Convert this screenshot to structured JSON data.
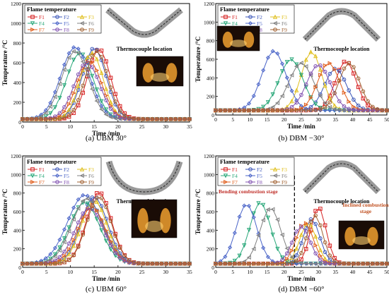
{
  "figure": {
    "panels": [
      {
        "caption": "(a) UBM 30°",
        "legend_title": "Flame temperature",
        "location_label": "Thermocouple location",
        "stage_labels": []
      },
      {
        "caption": "(b) DBM −30°",
        "legend_title": "Flame temperature",
        "location_label": "Thermocouple location",
        "stage_labels": []
      },
      {
        "caption": "(c) UBM 60°",
        "legend_title": "Flame temperature",
        "location_label": "Thermocouple location",
        "stage_labels": []
      },
      {
        "caption": "(d) DBM −60°",
        "legend_title": "Flame temperature",
        "location_label": "Thermocouple location",
        "stage_labels": [
          "Bending combustion stage",
          "Inclined combustion stage"
        ]
      }
    ]
  },
  "colors": {
    "F1": "#d62020",
    "F2": "#3a55b8",
    "F3": "#e0c020",
    "F4": "#2aa87a",
    "F5": "#4a64c8",
    "F6": "#808080",
    "F7": "#e06020",
    "F8": "#8050b0",
    "F9": "#a06030"
  },
  "icons": [
    "thermocouple-location-diagram",
    "flame-photo"
  ],
  "chart_data": [
    {
      "type": "line",
      "xlabel": "Time /min",
      "ylabel": "Temperature /°C",
      "xlim": [
        0,
        35
      ],
      "ylim": [
        0,
        1200
      ],
      "xticks": [
        0,
        5,
        10,
        15,
        20,
        25,
        30,
        35
      ],
      "yticks": [
        0,
        200,
        400,
        600,
        800,
        1000,
        1200
      ],
      "legend": "top-left",
      "series": [
        {
          "name": "F1",
          "peak_time": 16,
          "peak": 740,
          "width": 2.4,
          "base": 30
        },
        {
          "name": "F2",
          "peak_time": 15,
          "peak": 750,
          "width": 2.5,
          "base": 30
        },
        {
          "name": "F3",
          "peak_time": 14.5,
          "peak": 700,
          "width": 2.4,
          "base": 30
        },
        {
          "name": "F4",
          "peak_time": 12,
          "peak": 700,
          "width": 2.8,
          "base": 30
        },
        {
          "name": "F5",
          "peak_time": 11,
          "peak": 760,
          "width": 3.0,
          "base": 30
        },
        {
          "name": "F6",
          "peak_time": 11,
          "peak": 720,
          "width": 2.8,
          "base": 30
        },
        {
          "name": "F7",
          "peak_time": 14,
          "peak": 620,
          "width": 2.6,
          "base": 30
        },
        {
          "name": "F8",
          "peak_time": 13.5,
          "peak": 600,
          "width": 2.7,
          "base": 30
        },
        {
          "name": "F9",
          "peak_time": 15.5,
          "peak": 720,
          "width": 2.4,
          "base": 30
        }
      ]
    },
    {
      "type": "line",
      "xlabel": "Time /min",
      "ylabel": "Temperature /°C",
      "xlim": [
        0,
        50
      ],
      "ylim": [
        0,
        1200
      ],
      "xticks": [
        0,
        5,
        10,
        15,
        20,
        25,
        30,
        35,
        40,
        45,
        50
      ],
      "yticks": [
        0,
        200,
        400,
        600,
        800,
        1000,
        1200
      ],
      "legend": "top-left",
      "series": [
        {
          "name": "F1",
          "peak_time": 38,
          "peak": 580,
          "width": 3.0,
          "base": 50
        },
        {
          "name": "F2",
          "peak_time": 35,
          "peak": 500,
          "width": 3.2,
          "base": 50
        },
        {
          "name": "F3",
          "peak_time": 28,
          "peak": 680,
          "width": 3.0,
          "base": 50
        },
        {
          "name": "F4",
          "peak_time": 22,
          "peak": 600,
          "width": 3.5,
          "base": 50
        },
        {
          "name": "F5",
          "peak_time": 17,
          "peak": 690,
          "width": 3.5,
          "base": 50
        },
        {
          "name": "F6",
          "peak_time": 25,
          "peak": 560,
          "width": 3.6,
          "base": 50
        },
        {
          "name": "F7",
          "peak_time": 33,
          "peak": 560,
          "width": 3.2,
          "base": 50
        },
        {
          "name": "F8",
          "peak_time": 30,
          "peak": 540,
          "width": 3.4,
          "base": 50
        },
        {
          "name": "F9",
          "peak_time": 39,
          "peak": 560,
          "width": 3.0,
          "base": 50
        }
      ]
    },
    {
      "type": "line",
      "xlabel": "Time /min",
      "ylabel": "Temperature /°C",
      "xlim": [
        0,
        35
      ],
      "ylim": [
        0,
        1200
      ],
      "xticks": [
        0,
        5,
        10,
        15,
        20,
        25,
        30,
        35
      ],
      "yticks": [
        0,
        200,
        400,
        600,
        800,
        1000,
        1200
      ],
      "legend": "top-left",
      "series": [
        {
          "name": "F1",
          "peak_time": 16,
          "peak": 810,
          "width": 2.6,
          "base": 40
        },
        {
          "name": "F2",
          "peak_time": 15,
          "peak": 760,
          "width": 2.8,
          "base": 40
        },
        {
          "name": "F3",
          "peak_time": 15,
          "peak": 720,
          "width": 2.7,
          "base": 40
        },
        {
          "name": "F4",
          "peak_time": 13,
          "peak": 700,
          "width": 3.2,
          "base": 40
        },
        {
          "name": "F5",
          "peak_time": 13,
          "peak": 780,
          "width": 3.6,
          "base": 40
        },
        {
          "name": "F6",
          "peak_time": 13.5,
          "peak": 740,
          "width": 3.2,
          "base": 40
        },
        {
          "name": "F7",
          "peak_time": 14.5,
          "peak": 650,
          "width": 2.9,
          "base": 40
        },
        {
          "name": "F8",
          "peak_time": 14,
          "peak": 640,
          "width": 3.0,
          "base": 40
        },
        {
          "name": "F9",
          "peak_time": 16,
          "peak": 760,
          "width": 2.6,
          "base": 40
        }
      ]
    },
    {
      "type": "line",
      "xlabel": "Time /min",
      "ylabel": "Temperature /°C",
      "xlim": [
        0,
        50
      ],
      "ylim": [
        0,
        1200
      ],
      "xticks": [
        0,
        5,
        10,
        15,
        20,
        25,
        30,
        35,
        40,
        45,
        50
      ],
      "yticks": [
        0,
        200,
        400,
        600,
        800,
        1000,
        1200
      ],
      "legend": "top-left",
      "divider_x": 23,
      "series": [
        {
          "name": "F1",
          "peak_time": 30,
          "peak": 650,
          "width": 2.2,
          "base": 40
        },
        {
          "name": "F2",
          "peak_time": 28,
          "peak": 520,
          "width": 2.4,
          "base": 40
        },
        {
          "name": "F3",
          "peak_time": 27,
          "peak": 480,
          "width": 2.4,
          "base": 40
        },
        {
          "name": "F4",
          "peak_time": 13,
          "peak": 700,
          "width": 3.0,
          "base": 40
        },
        {
          "name": "F5",
          "peak_time": 9,
          "peak": 680,
          "width": 3.0,
          "base": 40
        },
        {
          "name": "F6",
          "peak_time": 16,
          "peak": 640,
          "width": 3.0,
          "base": 40
        },
        {
          "name": "F7",
          "peak_time": 26,
          "peak": 480,
          "width": 2.5,
          "base": 40
        },
        {
          "name": "F8",
          "peak_time": 25,
          "peak": 440,
          "width": 2.6,
          "base": 40
        },
        {
          "name": "F9",
          "peak_time": 29,
          "peak": 560,
          "width": 2.3,
          "base": 40
        }
      ]
    }
  ]
}
